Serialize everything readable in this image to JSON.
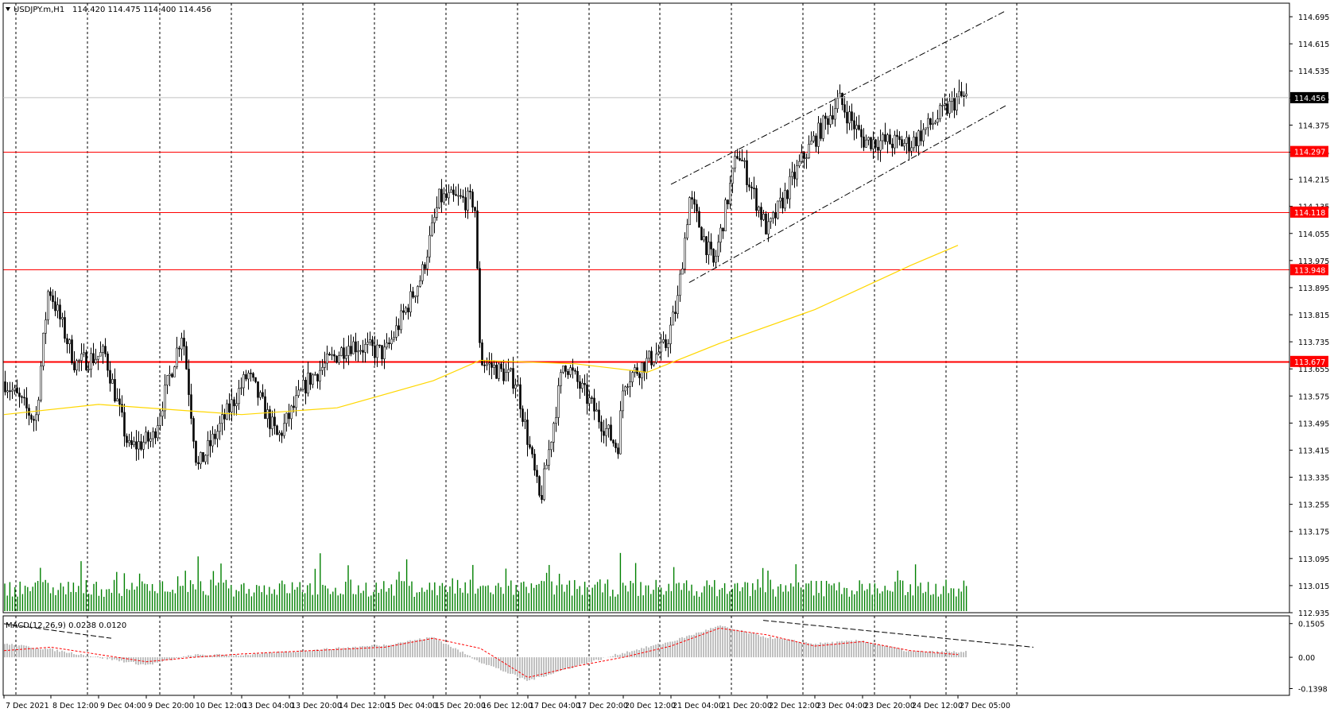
{
  "header": {
    "triangle_icon": "triangle-down-icon",
    "symbol": "USDJPY.m,H1",
    "ohlc": "114.420 114.475 114.400 114.456"
  },
  "indicator": {
    "label": "MACD(12,26,9) 0.0238 0.0120",
    "ticks": [
      {
        "label": "0.1505",
        "value": 0.1505
      },
      {
        "label": "0.00",
        "value": 0.0
      },
      {
        "label": "-0.1398",
        "value": -0.1398
      }
    ]
  },
  "price_axis": {
    "ticks": [
      "114.695",
      "114.615",
      "114.535",
      "114.455",
      "114.375",
      "114.295",
      "114.215",
      "114.135",
      "114.055",
      "113.975",
      "113.895",
      "113.815",
      "113.735",
      "113.655",
      "113.575",
      "113.495",
      "113.415",
      "113.335",
      "113.255",
      "113.175",
      "113.095",
      "113.015",
      "112.935"
    ],
    "current_price": "114.456",
    "levels": [
      {
        "label": "114.297",
        "value": 114.297,
        "color": "#ff0000"
      },
      {
        "label": "114.118",
        "value": 114.118,
        "color": "#ff0000"
      },
      {
        "label": "113.948",
        "value": 113.948,
        "color": "#ff0000"
      },
      {
        "label": "113.677",
        "value": 113.677,
        "color": "#ff0000"
      }
    ]
  },
  "time_axis": {
    "labels": [
      "7 Dec 2021",
      "8 Dec 12:00",
      "9 Dec 04:00",
      "9 Dec 20:00",
      "10 Dec 12:00",
      "13 Dec 04:00",
      "13 Dec 20:00",
      "14 Dec 12:00",
      "15 Dec 04:00",
      "15 Dec 20:00",
      "16 Dec 12:00",
      "17 Dec 04:00",
      "17 Dec 20:00",
      "20 Dec 12:00",
      "21 Dec 04:00",
      "21 Dec 20:00",
      "22 Dec 12:00",
      "23 Dec 04:00",
      "23 Dec 20:00",
      "24 Dec 12:00",
      "27 Dec 05:00"
    ]
  },
  "colors": {
    "candles": "#000000",
    "moving_average": "#ffd700",
    "volume": "#008000",
    "macd_histogram": "#c0c0c0",
    "macd_signal": "#ff0000",
    "levels": "#ff0000",
    "grid": "#000000"
  },
  "chart_data": {
    "type": "candlestick",
    "grid": "vertical dotted",
    "x_range": [
      "7 Dec 2021",
      "27 Dec 05:00"
    ],
    "y_range": [
      112.935,
      114.735
    ],
    "horizontal_levels": [
      114.297,
      114.118,
      113.948,
      113.677
    ],
    "price_path": [
      {
        "x": "7 Dec 2021",
        "price": 113.62
      },
      {
        "x": "8 Dec 00:00",
        "price": 113.5
      },
      {
        "x": "8 Dec 10:00",
        "price": 113.9
      },
      {
        "x": "8 Dec 20:00",
        "price": 113.67
      },
      {
        "x": "9 Dec 06:00",
        "price": 113.7
      },
      {
        "x": "9 Dec 14:00",
        "price": 113.42
      },
      {
        "x": "9 Dec 22:00",
        "price": 113.45
      },
      {
        "x": "10 Dec 08:00",
        "price": 113.77
      },
      {
        "x": "10 Dec 16:00",
        "price": 113.36
      },
      {
        "x": "13 Dec 06:00",
        "price": 113.64
      },
      {
        "x": "13 Dec 16:00",
        "price": 113.45
      },
      {
        "x": "14 Dec 02:00",
        "price": 113.62
      },
      {
        "x": "14 Dec 16:00",
        "price": 113.73
      },
      {
        "x": "15 Dec 04:00",
        "price": 113.7
      },
      {
        "x": "15 Dec 16:00",
        "price": 113.93
      },
      {
        "x": "15 Dec 22:00",
        "price": 114.16
      },
      {
        "x": "16 Dec 10:00",
        "price": 114.15
      },
      {
        "x": "16 Dec 12:00",
        "price": 113.68
      },
      {
        "x": "17 Dec 00:00",
        "price": 113.62
      },
      {
        "x": "17 Dec 08:00",
        "price": 113.26
      },
      {
        "x": "17 Dec 16:00",
        "price": 113.68
      },
      {
        "x": "20 Dec 04:00",
        "price": 113.42
      },
      {
        "x": "20 Dec 12:00",
        "price": 113.62
      },
      {
        "x": "21 Dec 02:00",
        "price": 113.72
      },
      {
        "x": "21 Dec 06:00",
        "price": 113.85
      },
      {
        "x": "21 Dec 10:00",
        "price": 114.16
      },
      {
        "x": "21 Dec 18:00",
        "price": 113.96
      },
      {
        "x": "22 Dec 02:00",
        "price": 114.3
      },
      {
        "x": "22 Dec 12:00",
        "price": 114.06
      },
      {
        "x": "23 Dec 00:00",
        "price": 114.28
      },
      {
        "x": "23 Dec 12:00",
        "price": 114.45
      },
      {
        "x": "23 Dec 20:00",
        "price": 114.33
      },
      {
        "x": "24 Dec 12:00",
        "price": 114.32
      },
      {
        "x": "27 Dec 05:00",
        "price": 114.456
      }
    ],
    "moving_average_path": [
      {
        "x": "7 Dec 2021",
        "value": 113.52
      },
      {
        "x": "9 Dec 04:00",
        "value": 113.55
      },
      {
        "x": "13 Dec 04:00",
        "value": 113.52
      },
      {
        "x": "14 Dec 12:00",
        "value": 113.54
      },
      {
        "x": "15 Dec 20:00",
        "value": 113.62
      },
      {
        "x": "16 Dec 12:00",
        "value": 113.68
      },
      {
        "x": "17 Dec 20:00",
        "value": 113.67
      },
      {
        "x": "20 Dec 20:00",
        "value": 113.645
      },
      {
        "x": "21 Dec 20:00",
        "value": 113.73
      },
      {
        "x": "23 Dec 04:00",
        "value": 113.83
      },
      {
        "x": "24 Dec 12:00",
        "value": 113.96
      },
      {
        "x": "27 Dec 05:00",
        "value": 114.02
      }
    ],
    "channel_lines": [
      {
        "from": {
          "x": "21 Dec 04:00",
          "price": 114.2
        },
        "to": {
          "x": "27 Dec 05:00",
          "price": 114.67
        }
      },
      {
        "from": {
          "x": "21 Dec 10:00",
          "price": 113.91
        },
        "to": {
          "x": "27 Dec 05:00",
          "price": 114.39
        }
      }
    ],
    "macd": {
      "range": [
        -0.1398,
        0.1505
      ],
      "main_path": [
        {
          "x": "7 Dec 2021",
          "value": 0.06
        },
        {
          "x": "8 Dec 12:00",
          "value": 0.035
        },
        {
          "x": "9 Dec 20:00",
          "value": -0.035
        },
        {
          "x": "10 Dec 12:00",
          "value": 0.01
        },
        {
          "x": "13 Dec 04:00",
          "value": 0.01
        },
        {
          "x": "15 Dec 04:00",
          "value": 0.055
        },
        {
          "x": "15 Dec 20:00",
          "value": 0.09
        },
        {
          "x": "16 Dec 12:00",
          "value": -0.02
        },
        {
          "x": "17 Dec 04:00",
          "value": -0.105
        },
        {
          "x": "17 Dec 20:00",
          "value": -0.04
        },
        {
          "x": "20 Dec 12:00",
          "value": 0.02
        },
        {
          "x": "21 Dec 04:00",
          "value": 0.07
        },
        {
          "x": "21 Dec 20:00",
          "value": 0.14
        },
        {
          "x": "22 Dec 12:00",
          "value": 0.09
        },
        {
          "x": "23 Dec 04:00",
          "value": 0.06
        },
        {
          "x": "23 Dec 20:00",
          "value": 0.075
        },
        {
          "x": "24 Dec 12:00",
          "value": 0.025
        },
        {
          "x": "27 Dec 05:00",
          "value": 0.0238
        }
      ],
      "signal_path": [
        {
          "x": "7 Dec 2021",
          "value": 0.03
        },
        {
          "x": "8 Dec 12:00",
          "value": 0.045
        },
        {
          "x": "9 Dec 20:00",
          "value": -0.02
        },
        {
          "x": "10 Dec 12:00",
          "value": 0.0
        },
        {
          "x": "13 Dec 04:00",
          "value": 0.015
        },
        {
          "x": "15 Dec 04:00",
          "value": 0.045
        },
        {
          "x": "15 Dec 20:00",
          "value": 0.085
        },
        {
          "x": "16 Dec 12:00",
          "value": 0.04
        },
        {
          "x": "17 Dec 04:00",
          "value": -0.09
        },
        {
          "x": "17 Dec 20:00",
          "value": -0.04
        },
        {
          "x": "20 Dec 12:00",
          "value": 0.0
        },
        {
          "x": "21 Dec 04:00",
          "value": 0.05
        },
        {
          "x": "21 Dec 20:00",
          "value": 0.13
        },
        {
          "x": "22 Dec 12:00",
          "value": 0.1
        },
        {
          "x": "23 Dec 04:00",
          "value": 0.05
        },
        {
          "x": "23 Dec 20:00",
          "value": 0.07
        },
        {
          "x": "24 Dec 12:00",
          "value": 0.03
        },
        {
          "x": "27 Dec 05:00",
          "value": 0.012
        }
      ]
    }
  }
}
